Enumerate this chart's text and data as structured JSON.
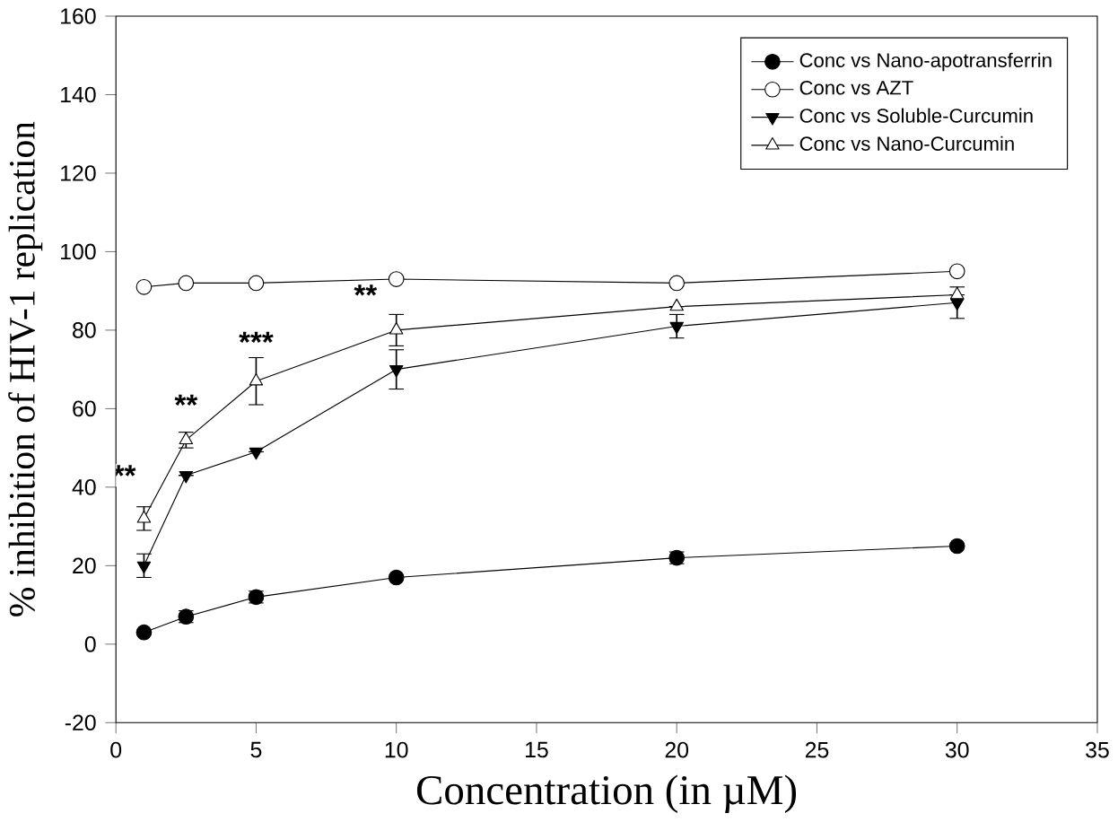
{
  "chart_data": {
    "type": "line",
    "xlabel": "Concentration (in µM)",
    "ylabel": "% inhibition of HIV-1 replication",
    "x": [
      1,
      2.5,
      5,
      10,
      20,
      30
    ],
    "series": [
      {
        "name": "Conc vs Nano-apotransferrin",
        "color": "#000000",
        "marker": "circle",
        "colors": [
          "#000000",
          "#000000",
          "#000000",
          "#000000",
          "#000000",
          "#000000"
        ],
        "values": [
          3,
          7,
          12,
          17,
          22,
          25
        ],
        "errors": [
          null,
          1.5,
          1.5,
          null,
          1.5,
          null
        ]
      },
      {
        "name": "Conc vs AZT",
        "color": "#000000",
        "marker": "circle",
        "colors": [
          "#ffffff",
          "#ffffff",
          "#ffffff",
          "#ffffff",
          "#ffffff",
          "#ffffff"
        ],
        "values": [
          91,
          92,
          92,
          93,
          92,
          95
        ]
      },
      {
        "name": "Conc vs Soluble-Curcumin",
        "color": "#000000",
        "marker": "triangle",
        "colors": [
          "#000000",
          "#000000",
          "#000000",
          "#000000",
          "#000000",
          "#000000"
        ],
        "values": [
          20,
          43,
          49,
          70,
          81,
          87
        ],
        "errors": [
          3,
          null,
          null,
          5,
          3,
          4
        ]
      },
      {
        "name": "Conc vs Nano-Curcumin",
        "color": "#000000",
        "marker": "triangle",
        "colors": [
          "#ffffff",
          "#ffffff",
          "#ffffff",
          "#ffffff",
          "#ffffff",
          "#ffffff"
        ],
        "values": [
          32,
          52,
          67,
          80,
          86,
          89
        ],
        "errors": [
          3,
          2,
          6,
          4,
          null,
          null
        ]
      }
    ],
    "annotations": [
      "**",
      "**",
      "***",
      "**"
    ],
    "xlim": [
      0,
      35
    ],
    "ylim": [
      -20,
      160
    ],
    "xticks": [
      0,
      5,
      10,
      15,
      20,
      25,
      30,
      35
    ],
    "yticks": [
      -20,
      0,
      20,
      40,
      60,
      80,
      100,
      120,
      140,
      160
    ],
    "legend": "top right",
    "grid": false
  }
}
